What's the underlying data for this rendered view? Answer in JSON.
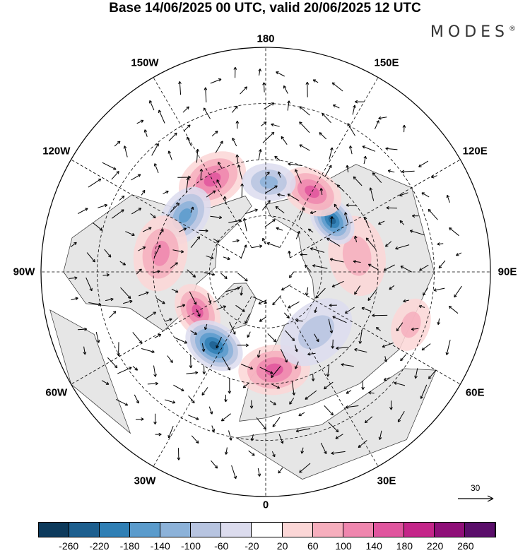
{
  "title": "Base 14/06/2025 00 UTC, valid 20/06/2025 12 UTC",
  "brand": "MODES",
  "brand_mark": "®",
  "longitude_labels": [
    {
      "text": "180",
      "lon": 180
    },
    {
      "text": "150E",
      "lon": 150
    },
    {
      "text": "120E",
      "lon": 120
    },
    {
      "text": "90E",
      "lon": 90
    },
    {
      "text": "60E",
      "lon": 60
    },
    {
      "text": "30E",
      "lon": 30
    },
    {
      "text": "0",
      "lon": 0
    },
    {
      "text": "30W",
      "lon": -30
    },
    {
      "text": "60W",
      "lon": -60
    },
    {
      "text": "90W",
      "lon": -90
    },
    {
      "text": "120W",
      "lon": -120
    },
    {
      "text": "150W",
      "lon": -150
    }
  ],
  "vector_reference": {
    "label": "30",
    "value": 30
  },
  "colorbar": {
    "ticks": [
      "-260",
      "-220",
      "-180",
      "-140",
      "-100",
      "-60",
      "-20",
      "20",
      "60",
      "100",
      "140",
      "180",
      "220",
      "260"
    ],
    "colors": [
      "#0d3a5c",
      "#1d5f8f",
      "#2f7fb5",
      "#5a9bcc",
      "#8cb2d9",
      "#b7c4e0",
      "#dcdcee",
      "#ffffff",
      "#fbd6d6",
      "#f6aebd",
      "#ef86ae",
      "#e0559e",
      "#c42589",
      "#8f0f78",
      "#5a0e6a"
    ]
  },
  "anomaly_centers": [
    {
      "lon": -150,
      "lat": 52,
      "value": 140,
      "r": 0.16
    },
    {
      "lon": -125,
      "lat": 55,
      "value": -160,
      "r": 0.14
    },
    {
      "lon": -100,
      "lat": 52,
      "value": 100,
      "r": 0.17
    },
    {
      "lon": -60,
      "lat": 62,
      "value": 150,
      "r": 0.13
    },
    {
      "lon": -35,
      "lat": 58,
      "value": -220,
      "r": 0.14
    },
    {
      "lon": 5,
      "lat": 55,
      "value": 140,
      "r": 0.16
    },
    {
      "lon": 40,
      "lat": 62,
      "value": -80,
      "r": 0.18
    },
    {
      "lon": 100,
      "lat": 57,
      "value": 80,
      "r": 0.18
    },
    {
      "lon": 128,
      "lat": 60,
      "value": -230,
      "r": 0.12
    },
    {
      "lon": 150,
      "lat": 57,
      "value": 150,
      "r": 0.14
    },
    {
      "lon": 178,
      "lat": 58,
      "value": -110,
      "r": 0.12
    },
    {
      "lon": 70,
      "lat": 35,
      "value": 60,
      "r": 0.12
    }
  ]
}
